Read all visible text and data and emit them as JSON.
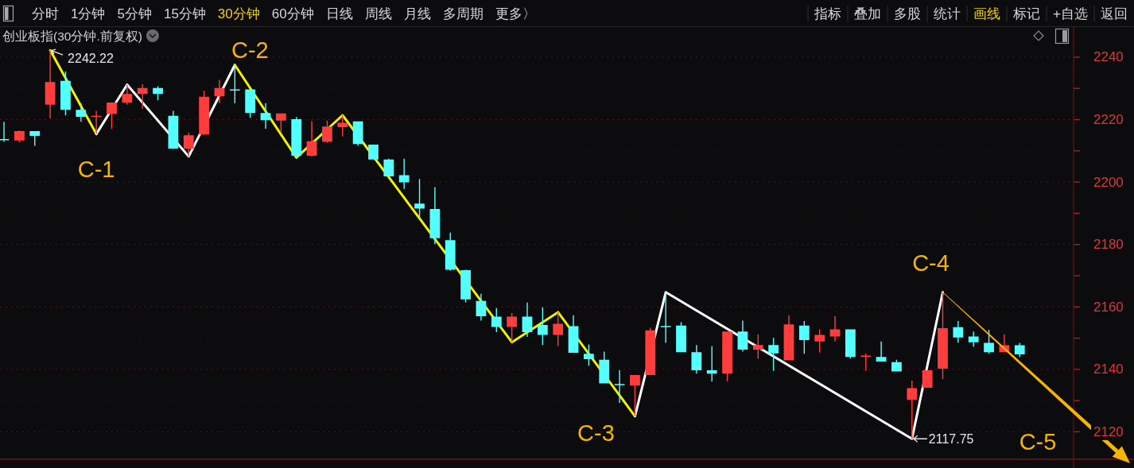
{
  "chart_data": {
    "type": "candlestick",
    "title": "创业板指(30分钟.前复权)",
    "categories": [
      null,
      null,
      null,
      null,
      null,
      null,
      null,
      null,
      null,
      null,
      null,
      null,
      null,
      null,
      null,
      null,
      null,
      null,
      null,
      null,
      null,
      null,
      null,
      null,
      null,
      null,
      null,
      null,
      null,
      null,
      null,
      null,
      null,
      null,
      null,
      null,
      null,
      null,
      null,
      null,
      null,
      null,
      null,
      null,
      null,
      null,
      null,
      null,
      null,
      null,
      null,
      null,
      null,
      null,
      null,
      null,
      null,
      null,
      null,
      null,
      null,
      null,
      null,
      null,
      null,
      null,
      null
    ],
    "ohlc": [
      [
        2213.8,
        2219.3,
        2212.9,
        2213.6
      ],
      [
        2213.3,
        2216.5,
        2212.7,
        2216.3
      ],
      [
        2216.3,
        2216.3,
        2211.6,
        2214.8
      ],
      [
        2224.8,
        2242.22,
        2220.4,
        2232.0
      ],
      [
        2232.4,
        2235.4,
        2221.4,
        2223.1
      ],
      [
        2223.1,
        2225.2,
        2219.3,
        2220.9
      ],
      [
        2221.1,
        2222.8,
        2215.4,
        2221.2
      ],
      [
        2221.8,
        2225.5,
        2217.0,
        2225.5
      ],
      [
        2225.5,
        2231.2,
        2224.8,
        2228.2
      ],
      [
        2228.2,
        2231.3,
        2223.5,
        2230.1
      ],
      [
        2230.1,
        2230.7,
        2226.2,
        2228.2
      ],
      [
        2221.2,
        2222.8,
        2210.6,
        2210.7
      ],
      [
        2210.7,
        2215.8,
        2208.2,
        2215.0
      ],
      [
        2215.3,
        2229.3,
        2215.0,
        2227.3
      ],
      [
        2227.5,
        2232.7,
        2225.2,
        2230.1
      ],
      [
        2229.7,
        2237.5,
        2225.2,
        2229.5
      ],
      [
        2229.7,
        2229.7,
        2220.5,
        2222.1
      ],
      [
        2222.1,
        2225.2,
        2217.1,
        2219.8
      ],
      [
        2219.7,
        2222.0,
        2215.8,
        2222.0
      ],
      [
        2220.1,
        2220.8,
        2207.8,
        2208.4
      ],
      [
        2208.4,
        2219.4,
        2208.2,
        2213.1
      ],
      [
        2212.9,
        2219.7,
        2212.6,
        2217.8
      ],
      [
        2217.6,
        2221.4,
        2214.6,
        2219.0
      ],
      [
        2219.4,
        2219.4,
        2211.6,
        2212.2
      ],
      [
        2212.0,
        2212.0,
        2207.2,
        2207.2
      ],
      [
        2207.2,
        2207.5,
        2201.8,
        2201.8
      ],
      [
        2202.2,
        2207.5,
        2197.8,
        2199.9
      ],
      [
        2193.1,
        2201.0,
        2188.2,
        2191.5
      ],
      [
        2191.4,
        2198.4,
        2180.1,
        2182.0
      ],
      [
        2181.4,
        2183.8,
        2171.6,
        2171.9
      ],
      [
        2171.8,
        2171.9,
        2161.4,
        2162.4
      ],
      [
        2161.9,
        2164.2,
        2155.6,
        2157.0
      ],
      [
        2156.9,
        2159.6,
        2151.9,
        2153.6
      ],
      [
        2153.6,
        2158.0,
        2148.7,
        2156.9
      ],
      [
        2156.9,
        2161.4,
        2150.4,
        2151.9
      ],
      [
        2154.2,
        2159.9,
        2147.8,
        2151.0
      ],
      [
        2151.0,
        2158.3,
        2147.4,
        2154.6
      ],
      [
        2153.8,
        2157.3,
        2145.3,
        2145.3
      ],
      [
        2145.0,
        2148.0,
        2141.2,
        2143.3
      ],
      [
        2143.1,
        2145.7,
        2135.5,
        2135.5
      ],
      [
        2135.3,
        2139.7,
        2129.3,
        2135.1
      ],
      [
        2134.8,
        2138.2,
        2125.0,
        2138.2
      ],
      [
        2138.2,
        2153.3,
        2138.2,
        2152.5
      ],
      [
        2153.9,
        2164.7,
        2148.5,
        2153.7
      ],
      [
        2154.0,
        2155.1,
        2145.5,
        2145.5
      ],
      [
        2145.5,
        2147.8,
        2138.6,
        2139.7
      ],
      [
        2139.7,
        2147.4,
        2136.1,
        2138.6
      ],
      [
        2138.6,
        2152.1,
        2136.1,
        2152.1
      ],
      [
        2152.1,
        2155.6,
        2145.7,
        2146.3
      ],
      [
        2146.3,
        2151.2,
        2143.4,
        2147.8
      ],
      [
        2147.8,
        2150.1,
        2139.5,
        2145.1
      ],
      [
        2142.9,
        2157.3,
        2142.9,
        2154.4
      ],
      [
        2154.0,
        2155.5,
        2145.0,
        2149.4
      ],
      [
        2148.9,
        2152.8,
        2145.4,
        2151.0
      ],
      [
        2150.5,
        2157.0,
        2148.9,
        2152.8
      ],
      [
        2152.8,
        2152.8,
        2143.4,
        2144.0
      ],
      [
        2144.2,
        2145.1,
        2139.5,
        2144.4
      ],
      [
        2144.0,
        2148.9,
        2142.5,
        2142.5
      ],
      [
        2142.3,
        2143.1,
        2139.3,
        2139.3
      ],
      [
        2130.2,
        2136.4,
        2117.75,
        2134.0
      ],
      [
        2134.1,
        2139.7,
        2134.1,
        2139.7
      ],
      [
        2140.2,
        2164.7,
        2136.9,
        2153.2
      ],
      [
        2153.5,
        2155.5,
        2148.5,
        2150.2
      ],
      [
        2150.5,
        2152.1,
        2147.2,
        2148.7
      ],
      [
        2148.5,
        2152.7,
        2145.0,
        2145.5
      ],
      [
        2145.5,
        2151.2,
        2145.5,
        2147.7
      ],
      [
        2147.7,
        2148.5,
        2144.0,
        2144.8
      ]
    ],
    "colors": [
      "#54ffff",
      "#ff3d3d",
      "#54ffff",
      "#ff3d3d",
      "#54ffff",
      "#54ffff",
      "#ff3d3d",
      "#ff3d3d",
      "#ff3d3d",
      "#ff3d3d",
      "#54ffff",
      "#54ffff",
      "#ff3d3d",
      "#ff3d3d",
      "#ff3d3d",
      "#54ffff",
      "#54ffff",
      "#54ffff",
      "#ff3d3d",
      "#54ffff",
      "#ff3d3d",
      "#ff3d3d",
      "#ff3d3d",
      "#54ffff",
      "#54ffff",
      "#54ffff",
      "#54ffff",
      "#54ffff",
      "#54ffff",
      "#54ffff",
      "#54ffff",
      "#54ffff",
      "#54ffff",
      "#ff3d3d",
      "#54ffff",
      "#54ffff",
      "#ff3d3d",
      "#54ffff",
      "#54ffff",
      "#54ffff",
      "#54ffff",
      "#ff3d3d",
      "#ff3d3d",
      "#54ffff",
      "#54ffff",
      "#54ffff",
      "#54ffff",
      "#ff3d3d",
      "#54ffff",
      "#ff3d3d",
      "#54ffff",
      "#ff3d3d",
      "#54ffff",
      "#ff3d3d",
      "#ff3d3d",
      "#54ffff",
      "#ff3d3d",
      "#54ffff",
      "#54ffff",
      "#ff3d3d",
      "#ff3d3d",
      "#ff3d3d",
      "#54ffff",
      "#54ffff",
      "#54ffff",
      "#ff3d3d",
      "#54ffff"
    ],
    "series": [
      {
        "type": "line",
        "color": "#f2f200",
        "values": [
          null,
          null,
          null,
          2242.22,
          null,
          null,
          2215.4,
          null,
          null,
          null,
          null,
          null,
          null,
          null,
          null,
          null,
          null,
          null,
          null,
          null,
          null,
          null,
          null,
          null,
          null,
          null,
          null,
          null,
          null,
          null,
          null,
          null,
          null,
          null,
          null,
          null,
          null,
          null,
          null,
          null,
          null,
          null,
          null,
          null,
          null,
          null,
          null,
          null,
          null,
          null,
          null,
          null,
          null,
          null,
          null,
          null,
          null,
          null,
          null,
          null,
          null,
          null,
          null,
          null,
          null,
          null,
          null
        ]
      },
      {
        "type": "line",
        "color": "#ffffff",
        "values": [
          null,
          null,
          null,
          null,
          null,
          null,
          2215.4,
          null,
          2231.2,
          null,
          null,
          null,
          2208.2,
          null,
          null,
          2237.5,
          null,
          null,
          null,
          null,
          null,
          null,
          null,
          null,
          null,
          null,
          null,
          null,
          null,
          null,
          null,
          null,
          null,
          null,
          null,
          null,
          null,
          null,
          null,
          null,
          null,
          null,
          null,
          null,
          null,
          null,
          null,
          null,
          null,
          null,
          null,
          null,
          null,
          null,
          null,
          null,
          null,
          null,
          null,
          null,
          null,
          null,
          null,
          null,
          null,
          null,
          null
        ]
      },
      {
        "type": "line",
        "color": "#f2f200",
        "values": [
          null,
          null,
          null,
          null,
          null,
          null,
          null,
          null,
          null,
          null,
          null,
          null,
          null,
          null,
          null,
          2237.5,
          null,
          null,
          null,
          2207.8,
          null,
          null,
          2221.4,
          null,
          null,
          null,
          null,
          null,
          null,
          null,
          null,
          null,
          null,
          2148.7,
          null,
          null,
          2158.3,
          null,
          null,
          null,
          null,
          2125.0,
          null,
          null,
          null,
          null,
          null,
          null,
          null,
          null,
          null,
          null,
          null,
          null,
          null,
          null,
          null,
          null,
          null,
          null,
          null,
          null,
          null,
          null,
          null,
          null,
          null
        ]
      },
      {
        "type": "line",
        "color": "#ffffff",
        "values": [
          null,
          null,
          null,
          null,
          null,
          null,
          null,
          null,
          null,
          null,
          null,
          null,
          null,
          null,
          null,
          null,
          null,
          null,
          null,
          null,
          null,
          null,
          null,
          null,
          null,
          null,
          null,
          null,
          null,
          null,
          null,
          null,
          null,
          null,
          null,
          null,
          null,
          null,
          null,
          null,
          null,
          2125.0,
          null,
          2164.7,
          null,
          null,
          null,
          null,
          null,
          null,
          null,
          null,
          null,
          null,
          null,
          null,
          null,
          null,
          null,
          2117.75,
          null,
          2164.7,
          null,
          null,
          null,
          null,
          null
        ]
      }
    ],
    "ylim": [
      2111.2,
      2249.4
    ],
    "yticks": [
      2120,
      {
        "value": 2130,
        "label": null
      },
      2140,
      {
        "value": 2150,
        "label": null
      },
      2160,
      {
        "value": 2170,
        "label": null
      },
      2180,
      {
        "value": 2190,
        "label": null
      },
      2200,
      {
        "value": 2210,
        "label": null
      },
      2220,
      {
        "value": 2230,
        "label": null
      },
      2240
    ],
    "grid": "y",
    "annotations": [
      "分时",
      "1分钟",
      "5分钟",
      "15分钟",
      "30分钟",
      "60分钟",
      "日线",
      "周线",
      "月线",
      "多周期",
      "更多〉",
      "指标",
      "叠加",
      "多股",
      "统计",
      "画线",
      "标记",
      "+自选",
      "返回",
      "2242.22",
      "2117.75",
      "C-1",
      "C-2",
      "C-3",
      "C-4",
      "C-5"
    ]
  }
}
